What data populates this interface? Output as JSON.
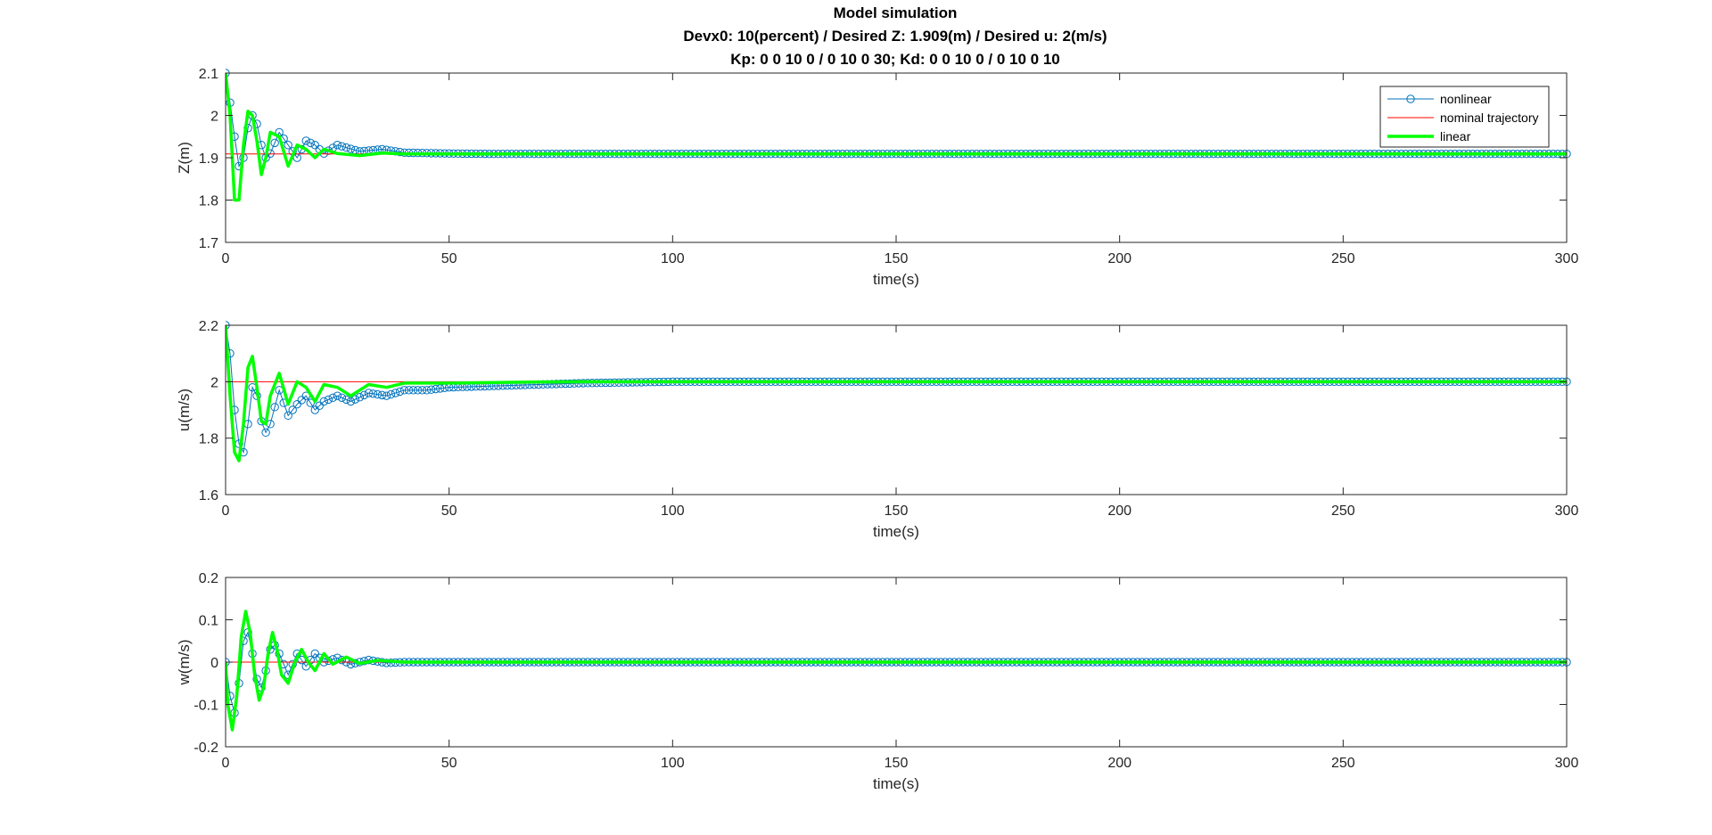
{
  "figure": {
    "title_lines": [
      "Model simulation",
      "Devx0: 10(percent) / Desired Z: 1.909(m) / Desired u: 2(m/s)",
      "Kp: 0   0  10   0 / 0  10   0  30; Kd: 0   0  10   0 / 0  10   0  10"
    ]
  },
  "colors": {
    "nonlinear": "#0072BD",
    "nominal": "#FF0000",
    "linear": "#00FF00",
    "axes": "#262626",
    "background": "#FFFFFF"
  },
  "legend": {
    "placement": "top-right of first subplot",
    "entries": [
      {
        "label": "nonlinear",
        "style": "line-circle",
        "color_key": "nonlinear"
      },
      {
        "label": "nominal trajectory",
        "style": "thin-line",
        "color_key": "nominal"
      },
      {
        "label": "linear",
        "style": "thick-line",
        "color_key": "linear"
      }
    ]
  },
  "chart_data": [
    {
      "type": "line",
      "xlabel": "time(s)",
      "ylabel": "Z(m)",
      "xlim": [
        0,
        300
      ],
      "ylim": [
        1.7,
        2.1
      ],
      "xticks": [
        "0",
        "50",
        "100",
        "150",
        "200",
        "250",
        "300"
      ],
      "yticks": [
        "1.7",
        "1.8",
        "1.9",
        "2",
        "2.1"
      ],
      "grid": false,
      "legend": true,
      "series": [
        {
          "name": "nonlinear",
          "marker": "circle",
          "x": [
            0,
            1,
            2,
            3,
            4,
            5,
            6,
            7,
            8,
            9,
            10,
            12,
            14,
            16,
            18,
            20,
            22,
            25,
            30,
            35,
            40,
            50,
            60,
            80,
            100,
            150,
            200,
            250,
            300
          ],
          "y": [
            2.1,
            2.03,
            1.95,
            1.88,
            1.9,
            1.97,
            2.0,
            1.98,
            1.93,
            1.9,
            1.91,
            1.96,
            1.93,
            1.9,
            1.94,
            1.93,
            1.91,
            1.93,
            1.915,
            1.92,
            1.912,
            1.91,
            1.909,
            1.909,
            1.909,
            1.909,
            1.909,
            1.909,
            1.909
          ]
        },
        {
          "name": "nominal trajectory",
          "x": [
            0,
            300
          ],
          "y": [
            1.909,
            1.909
          ]
        },
        {
          "name": "linear",
          "x": [
            0,
            1,
            2,
            3,
            4,
            5,
            6,
            7,
            8,
            9,
            10,
            12,
            14,
            16,
            18,
            20,
            22,
            25,
            30,
            35,
            40,
            50,
            60,
            100,
            150,
            200,
            250,
            300
          ],
          "y": [
            2.1,
            2.0,
            1.8,
            1.8,
            1.93,
            2.01,
            2.0,
            1.94,
            1.86,
            1.9,
            1.96,
            1.95,
            1.88,
            1.93,
            1.92,
            1.9,
            1.92,
            1.91,
            1.905,
            1.911,
            1.909,
            1.909,
            1.909,
            1.909,
            1.909,
            1.909,
            1.909,
            1.909
          ]
        }
      ]
    },
    {
      "type": "line",
      "xlabel": "time(s)",
      "ylabel": "u(m/s)",
      "xlim": [
        0,
        300
      ],
      "ylim": [
        1.6,
        2.2
      ],
      "xticks": [
        "0",
        "50",
        "100",
        "150",
        "200",
        "250",
        "300"
      ],
      "yticks": [
        "1.6",
        "1.8",
        "2",
        "2.2"
      ],
      "grid": false,
      "legend": false,
      "series": [
        {
          "name": "nonlinear",
          "marker": "circle",
          "x": [
            0,
            1,
            2,
            3,
            4,
            5,
            6,
            7,
            8,
            9,
            10,
            12,
            14,
            16,
            18,
            20,
            22,
            25,
            28,
            32,
            36,
            40,
            45,
            50,
            60,
            70,
            80,
            100,
            150,
            200,
            250,
            300
          ],
          "y": [
            2.2,
            2.1,
            1.9,
            1.78,
            1.75,
            1.85,
            1.98,
            1.95,
            1.86,
            1.82,
            1.85,
            1.97,
            1.88,
            1.92,
            1.95,
            1.9,
            1.93,
            1.95,
            1.93,
            1.96,
            1.95,
            1.97,
            1.97,
            1.98,
            1.985,
            1.99,
            1.995,
            2.0,
            2.0,
            2.0,
            2.0,
            2.0
          ]
        },
        {
          "name": "nominal trajectory",
          "x": [
            0,
            300
          ],
          "y": [
            2.0,
            2.0
          ]
        },
        {
          "name": "linear",
          "x": [
            0,
            1,
            2,
            3,
            4,
            5,
            6,
            7,
            8,
            9,
            10,
            12,
            14,
            16,
            18,
            20,
            22,
            25,
            28,
            32,
            36,
            40,
            50,
            60,
            70,
            80,
            100,
            150,
            200,
            250,
            300
          ],
          "y": [
            2.2,
            1.95,
            1.75,
            1.72,
            1.85,
            2.05,
            2.09,
            1.98,
            1.86,
            1.85,
            1.95,
            2.03,
            1.92,
            2.0,
            1.98,
            1.93,
            1.99,
            1.98,
            1.95,
            1.99,
            1.98,
            1.995,
            1.995,
            1.997,
            1.999,
            2.0,
            2.0,
            2.0,
            2.0,
            2.0,
            2.0
          ]
        }
      ]
    },
    {
      "type": "line",
      "xlabel": "time(s)",
      "ylabel": "w(m/s)",
      "xlim": [
        0,
        300
      ],
      "ylim": [
        -0.2,
        0.2
      ],
      "xticks": [
        "0",
        "50",
        "100",
        "150",
        "200",
        "250",
        "300"
      ],
      "yticks": [
        "-0.2",
        "-0.1",
        "0",
        "0.1",
        "0.2"
      ],
      "grid": false,
      "legend": false,
      "series": [
        {
          "name": "nonlinear",
          "marker": "circle",
          "x": [
            0,
            1,
            2,
            3,
            4,
            5,
            6,
            7,
            8,
            9,
            10,
            11,
            12,
            14,
            16,
            18,
            20,
            22,
            25,
            28,
            32,
            36,
            40,
            50,
            60,
            100,
            150,
            200,
            250,
            300
          ],
          "y": [
            0.0,
            -0.08,
            -0.12,
            -0.05,
            0.05,
            0.07,
            0.02,
            -0.04,
            -0.06,
            -0.02,
            0.03,
            0.04,
            0.02,
            -0.03,
            0.02,
            -0.01,
            0.02,
            0.0,
            0.01,
            -0.005,
            0.005,
            -0.002,
            0.0,
            0.0,
            0.0,
            0.0,
            0.0,
            0.0,
            0.0,
            0.0
          ]
        },
        {
          "name": "nominal trajectory",
          "x": [
            0,
            300
          ],
          "y": [
            0.0,
            0.0
          ]
        },
        {
          "name": "linear",
          "x": [
            0,
            0.5,
            1.5,
            2.5,
            3.5,
            4.5,
            5.5,
            6.5,
            7.5,
            8.5,
            9.5,
            10.5,
            11.5,
            12.5,
            14,
            15.5,
            17,
            18.5,
            20,
            22,
            24,
            27,
            30,
            34,
            40,
            50,
            60,
            100,
            150,
            200,
            250,
            300
          ],
          "y": [
            0.0,
            -0.1,
            -0.16,
            -0.08,
            0.06,
            0.12,
            0.07,
            -0.03,
            -0.09,
            -0.06,
            0.02,
            0.07,
            0.03,
            -0.03,
            -0.05,
            0.0,
            0.03,
            0.0,
            -0.02,
            0.02,
            -0.005,
            0.012,
            -0.003,
            0.004,
            0.0,
            0.0,
            0.0,
            0.0,
            0.0,
            0.0,
            0.0,
            0.0
          ]
        }
      ]
    }
  ]
}
